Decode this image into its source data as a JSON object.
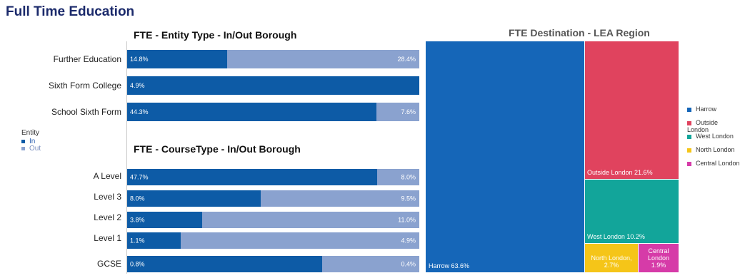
{
  "page": {
    "title": "Full Time Education"
  },
  "legend": {
    "title": "Entity",
    "items": [
      {
        "label": "In",
        "color": "#0d5ba6"
      },
      {
        "label": "Out",
        "color": "#8aa2cf"
      }
    ]
  },
  "chart_data": [
    {
      "type": "bar",
      "orientation": "horizontal",
      "stacked": true,
      "title": "FTE - Entity Type - In/Out Borough",
      "categories": [
        "Further Education",
        "Sixth Form College",
        "School Sixth Form"
      ],
      "series": [
        {
          "name": "In",
          "values": [
            14.8,
            4.9,
            44.3
          ],
          "labels": [
            "14.8%",
            "4.9%",
            "44.3%"
          ]
        },
        {
          "name": "Out",
          "values": [
            28.4,
            0,
            7.6
          ],
          "labels": [
            "28.4%",
            "",
            "7.6%"
          ]
        }
      ],
      "fill_fraction_in": [
        0.343,
        1.0,
        0.854
      ]
    },
    {
      "type": "bar",
      "orientation": "horizontal",
      "stacked": true,
      "title": "FTE - CourseType - In/Out Borough",
      "categories": [
        "A Level",
        "Level 3",
        "Level 2",
        "Level 1",
        "GCSE"
      ],
      "series": [
        {
          "name": "In",
          "values": [
            47.7,
            8.0,
            3.8,
            1.1,
            0.8
          ],
          "labels": [
            "47.7%",
            "8.0%",
            "3.8%",
            "1.1%",
            "0.8%"
          ]
        },
        {
          "name": "Out",
          "values": [
            8.0,
            9.5,
            11.0,
            4.9,
            0.4
          ],
          "labels": [
            "8.0%",
            "9.5%",
            "11.0%",
            "4.9%",
            "0.4%"
          ]
        }
      ],
      "fill_fraction_in": [
        0.856,
        0.457,
        0.257,
        0.184,
        0.667
      ]
    },
    {
      "type": "treemap",
      "title": "FTE Destination - LEA Region",
      "items": [
        {
          "name": "Harrow",
          "value": 63.6,
          "label": "Harrow 63.6%",
          "color": "#1566b8"
        },
        {
          "name": "Outside London",
          "value": 21.6,
          "label": "Outside London 21.6%",
          "color": "#e0435e"
        },
        {
          "name": "West London",
          "value": 10.2,
          "label": "West London 10.2%",
          "color": "#12a59a"
        },
        {
          "name": "North London",
          "value": 2.7,
          "label": "North London, 2.7%",
          "color": "#f5c518"
        },
        {
          "name": "Central London",
          "value": 1.9,
          "label": "Central London 1.9%",
          "color": "#d63ba8"
        }
      ],
      "legend": [
        "Harrow",
        "Outside London",
        "West London",
        "North London",
        "Central London"
      ]
    }
  ]
}
